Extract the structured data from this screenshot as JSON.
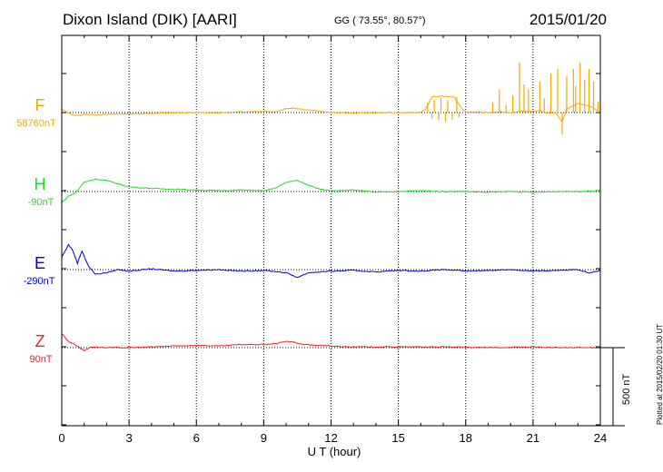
{
  "header": {
    "station": "Dixon Island (DIK)  [AARI]",
    "coords": "GG ( 73.55°,  80.57°)",
    "date": "2015/01/20"
  },
  "plotted": "Plotted at 2015/02/20 01:30 UT",
  "scale_label": "500 nT",
  "chart_data": {
    "type": "line",
    "title": "Dixon Island (DIK)  [AARI]",
    "xlabel": "U T (hour)",
    "ylabel": "",
    "xlim": [
      0,
      24
    ],
    "x_ticks": [
      0,
      3,
      6,
      9,
      12,
      15,
      18,
      21,
      24
    ],
    "x_tick_labels": [
      "0",
      "3",
      "6",
      "9",
      "12",
      "15",
      "18",
      "21",
      "24"
    ],
    "scale_bar_nT": 500,
    "grid": "dotted vertical lines every 3 hours",
    "series": [
      {
        "name": "F",
        "baseline_label": "58760nT",
        "baseline_nT": 58760,
        "color": "#f5a800",
        "points": [
          [
            0,
            20
          ],
          [
            0.2,
            5
          ],
          [
            0.5,
            -15
          ],
          [
            0.8,
            -20
          ],
          [
            1,
            -10
          ],
          [
            1.5,
            -15
          ],
          [
            2,
            -12
          ],
          [
            3,
            -8
          ],
          [
            4,
            -5
          ],
          [
            5,
            -3
          ],
          [
            6,
            0
          ],
          [
            7,
            -2
          ],
          [
            8,
            5
          ],
          [
            9,
            8
          ],
          [
            9.5,
            5
          ],
          [
            10,
            25
          ],
          [
            10.3,
            30
          ],
          [
            10.8,
            20
          ],
          [
            11.5,
            8
          ],
          [
            12,
            0
          ],
          [
            13,
            -3
          ],
          [
            14,
            -2
          ],
          [
            15,
            0
          ],
          [
            16,
            0
          ],
          [
            16.2,
            20
          ],
          [
            16.5,
            100
          ],
          [
            17,
            105
          ],
          [
            17.5,
            100
          ],
          [
            17.8,
            30
          ],
          [
            18,
            5
          ],
          [
            18.5,
            2
          ],
          [
            19,
            0
          ],
          [
            19.5,
            5
          ],
          [
            20,
            0
          ],
          [
            20.5,
            10
          ],
          [
            21,
            5
          ],
          [
            21.3,
            15
          ],
          [
            21.6,
            -5
          ],
          [
            22,
            0
          ],
          [
            22.3,
            -60
          ],
          [
            22.5,
            20
          ],
          [
            23,
            60
          ],
          [
            23.5,
            40
          ],
          [
            23.8,
            20
          ],
          [
            24,
            0
          ]
        ],
        "spikes": [
          [
            16.3,
            60
          ],
          [
            16.5,
            -40
          ],
          [
            16.6,
            80
          ],
          [
            16.8,
            -50
          ],
          [
            16.9,
            95
          ],
          [
            17.1,
            -60
          ],
          [
            17.2,
            80
          ],
          [
            17.4,
            -45
          ],
          [
            17.6,
            100
          ],
          [
            17.7,
            -30
          ],
          [
            19.2,
            65
          ],
          [
            19.5,
            150
          ],
          [
            19.8,
            50
          ],
          [
            20.1,
            110
          ],
          [
            20.4,
            320
          ],
          [
            20.6,
            180
          ],
          [
            20.8,
            150
          ],
          [
            21.3,
            200
          ],
          [
            21.5,
            90
          ],
          [
            21.8,
            250
          ],
          [
            22.1,
            280
          ],
          [
            22.3,
            -140
          ],
          [
            22.5,
            230
          ],
          [
            22.8,
            280
          ],
          [
            22.9,
            170
          ],
          [
            23.1,
            320
          ],
          [
            23.3,
            210
          ],
          [
            23.5,
            280
          ],
          [
            23.7,
            200
          ],
          [
            23.9,
            70
          ]
        ]
      },
      {
        "name": "H",
        "baseline_label": "-90nT",
        "baseline_nT": -90,
        "color": "#22dd22",
        "points": [
          [
            0,
            -70
          ],
          [
            0.3,
            -30
          ],
          [
            0.6,
            -10
          ],
          [
            1,
            60
          ],
          [
            1.5,
            80
          ],
          [
            2,
            70
          ],
          [
            3,
            30
          ],
          [
            4,
            20
          ],
          [
            5,
            15
          ],
          [
            6,
            10
          ],
          [
            7,
            5
          ],
          [
            8,
            10
          ],
          [
            9,
            5
          ],
          [
            9.5,
            20
          ],
          [
            10,
            60
          ],
          [
            10.5,
            70
          ],
          [
            11,
            40
          ],
          [
            11.5,
            15
          ],
          [
            12,
            5
          ],
          [
            13,
            10
          ],
          [
            14,
            -5
          ],
          [
            15,
            0
          ],
          [
            16,
            5
          ],
          [
            17,
            0
          ],
          [
            18,
            0
          ],
          [
            19,
            -5
          ],
          [
            20,
            0
          ],
          [
            21,
            -5
          ],
          [
            22,
            0
          ],
          [
            23,
            0
          ],
          [
            24,
            5
          ]
        ]
      },
      {
        "name": "E",
        "baseline_label": "-290nT",
        "baseline_nT": -290,
        "color": "#0000cc",
        "points": [
          [
            0,
            80
          ],
          [
            0.3,
            160
          ],
          [
            0.5,
            120
          ],
          [
            0.7,
            40
          ],
          [
            0.9,
            120
          ],
          [
            1.2,
            20
          ],
          [
            1.5,
            -30
          ],
          [
            2,
            -20
          ],
          [
            2.5,
            0
          ],
          [
            3,
            -10
          ],
          [
            4,
            5
          ],
          [
            5,
            -10
          ],
          [
            6,
            -5
          ],
          [
            7,
            0
          ],
          [
            8,
            -10
          ],
          [
            9,
            -5
          ],
          [
            10,
            -20
          ],
          [
            10.5,
            -50
          ],
          [
            11,
            -20
          ],
          [
            12,
            -10
          ],
          [
            13,
            -5
          ],
          [
            14,
            -15
          ],
          [
            15,
            -5
          ],
          [
            16,
            -10
          ],
          [
            17,
            0
          ],
          [
            18,
            -10
          ],
          [
            19,
            -5
          ],
          [
            20,
            0
          ],
          [
            21,
            -10
          ],
          [
            22,
            -5
          ],
          [
            23,
            0
          ],
          [
            23.5,
            -20
          ],
          [
            24,
            -5
          ]
        ]
      },
      {
        "name": "Z",
        "baseline_label": "90nT",
        "baseline_nT": 90,
        "color": "#ee2222",
        "points": [
          [
            0,
            90
          ],
          [
            0.3,
            40
          ],
          [
            0.6,
            20
          ],
          [
            1,
            -20
          ],
          [
            1.3,
            5
          ],
          [
            2,
            0
          ],
          [
            3,
            0
          ],
          [
            4,
            5
          ],
          [
            5,
            10
          ],
          [
            6,
            15
          ],
          [
            7,
            10
          ],
          [
            8,
            20
          ],
          [
            9,
            20
          ],
          [
            9.5,
            25
          ],
          [
            10,
            40
          ],
          [
            10.3,
            35
          ],
          [
            10.8,
            20
          ],
          [
            12,
            10
          ],
          [
            13,
            5
          ],
          [
            15,
            5
          ],
          [
            17,
            5
          ],
          [
            19,
            0
          ],
          [
            21,
            5
          ],
          [
            22,
            0
          ],
          [
            24,
            0
          ]
        ]
      }
    ]
  }
}
